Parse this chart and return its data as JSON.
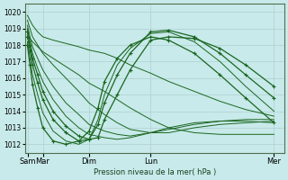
{
  "background_color": "#c8eaea",
  "grid_color": "#b0d0d0",
  "line_color": "#1a6620",
  "xlabel_text": "Pression niveau de la mer( hPa )",
  "xtick_labels": [
    "Sam",
    "Mar",
    "Dim",
    "Lun",
    "Mer"
  ],
  "xtick_positions": [
    0.5,
    12,
    48,
    96,
    192
  ],
  "ylim": [
    1011.5,
    1020.5
  ],
  "xlim": [
    -2,
    200
  ],
  "yticks": [
    1012,
    1013,
    1014,
    1015,
    1016,
    1017,
    1018,
    1019,
    1020
  ],
  "series": [
    {
      "x": [
        0,
        2,
        4,
        8,
        12,
        20,
        30,
        40,
        48,
        60,
        70,
        80,
        96,
        110,
        130,
        150,
        170,
        192
      ],
      "y": [
        1019.8,
        1019.5,
        1019.2,
        1018.8,
        1018.5,
        1018.3,
        1018.1,
        1017.9,
        1017.7,
        1017.5,
        1017.2,
        1016.8,
        1016.3,
        1015.8,
        1015.2,
        1014.6,
        1014.1,
        1013.7
      ],
      "marker": false,
      "lw": 0.7
    },
    {
      "x": [
        0,
        2,
        4,
        8,
        12,
        20,
        30,
        40,
        48,
        60,
        70,
        80,
        96,
        110,
        130,
        150,
        170,
        192
      ],
      "y": [
        1019.5,
        1019.0,
        1018.5,
        1018.0,
        1017.5,
        1016.8,
        1016.0,
        1015.2,
        1014.5,
        1013.8,
        1013.3,
        1012.9,
        1012.7,
        1012.7,
        1013.0,
        1013.2,
        1013.3,
        1013.4
      ],
      "marker": false,
      "lw": 0.7
    },
    {
      "x": [
        0,
        2,
        4,
        8,
        12,
        20,
        30,
        40,
        48,
        60,
        70,
        80,
        96,
        110,
        130,
        150,
        170,
        192
      ],
      "y": [
        1019.2,
        1018.5,
        1017.9,
        1017.2,
        1016.5,
        1015.5,
        1014.5,
        1013.8,
        1013.2,
        1012.8,
        1012.6,
        1012.5,
        1012.7,
        1012.9,
        1013.2,
        1013.4,
        1013.5,
        1013.5
      ],
      "marker": false,
      "lw": 0.7
    },
    {
      "x": [
        0,
        2,
        4,
        8,
        12,
        20,
        30,
        40,
        48,
        60,
        70,
        80,
        96,
        110,
        130,
        150,
        170,
        192
      ],
      "y": [
        1019.0,
        1018.2,
        1017.5,
        1016.6,
        1015.8,
        1014.7,
        1013.7,
        1013.0,
        1012.6,
        1012.4,
        1012.3,
        1012.4,
        1012.7,
        1013.0,
        1013.3,
        1013.4,
        1013.4,
        1013.3
      ],
      "marker": false,
      "lw": 0.7
    },
    {
      "x": [
        0,
        2,
        4,
        8,
        12,
        20,
        30,
        40,
        48,
        55,
        60,
        70,
        80,
        96,
        110,
        130,
        150,
        170,
        192
      ],
      "y": [
        1018.8,
        1018.0,
        1017.2,
        1016.2,
        1015.2,
        1014.0,
        1013.1,
        1012.5,
        1012.3,
        1012.4,
        1013.5,
        1015.0,
        1016.5,
        1018.3,
        1018.5,
        1018.4,
        1017.8,
        1016.8,
        1015.5
      ],
      "marker": true,
      "lw": 0.9
    },
    {
      "x": [
        0,
        2,
        4,
        8,
        12,
        20,
        30,
        40,
        48,
        55,
        60,
        70,
        80,
        96,
        110,
        130,
        150,
        170,
        192
      ],
      "y": [
        1018.5,
        1017.7,
        1016.8,
        1015.7,
        1014.7,
        1013.5,
        1012.7,
        1012.2,
        1012.3,
        1013.2,
        1014.5,
        1016.2,
        1017.5,
        1018.8,
        1018.9,
        1018.5,
        1017.5,
        1016.2,
        1014.8
      ],
      "marker": true,
      "lw": 0.9
    },
    {
      "x": [
        0,
        2,
        4,
        8,
        12,
        20,
        30,
        40,
        48,
        55,
        60,
        70,
        80,
        96,
        110,
        130,
        150,
        170,
        192
      ],
      "y": [
        1018.2,
        1017.2,
        1016.2,
        1015.0,
        1013.9,
        1012.8,
        1012.2,
        1012.0,
        1012.3,
        1013.5,
        1015.0,
        1016.8,
        1017.8,
        1018.7,
        1018.8,
        1018.2,
        1017.0,
        1015.5,
        1014.0
      ],
      "marker": false,
      "lw": 0.7
    },
    {
      "x": [
        0,
        2,
        4,
        8,
        12,
        20,
        30,
        40,
        48,
        55,
        60,
        70,
        80,
        96,
        110,
        130,
        150,
        170,
        192
      ],
      "y": [
        1018.0,
        1016.8,
        1015.6,
        1014.2,
        1013.0,
        1012.2,
        1012.0,
        1012.2,
        1012.8,
        1014.2,
        1015.8,
        1017.2,
        1018.0,
        1018.5,
        1018.3,
        1017.5,
        1016.2,
        1014.8,
        1013.3
      ],
      "marker": true,
      "lw": 0.9
    },
    {
      "x": [
        0,
        2,
        4,
        8,
        12,
        20,
        30,
        40,
        48,
        60,
        70,
        80,
        96,
        110,
        130,
        150,
        170,
        192
      ],
      "y": [
        1018.6,
        1018.4,
        1018.2,
        1017.9,
        1017.6,
        1017.2,
        1016.7,
        1016.2,
        1015.7,
        1015.2,
        1014.7,
        1014.2,
        1013.5,
        1013.0,
        1012.7,
        1012.6,
        1012.6,
        1012.6
      ],
      "marker": false,
      "lw": 0.7
    }
  ]
}
